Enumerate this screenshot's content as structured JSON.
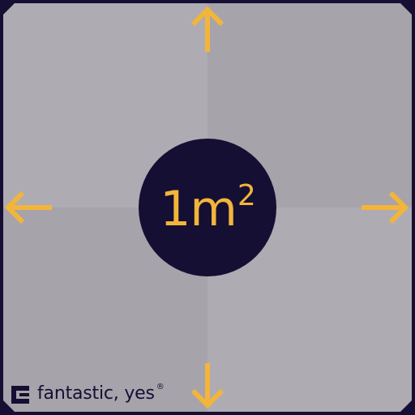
{
  "badge": {
    "main": "1m",
    "superscript": "2"
  },
  "brand": {
    "name": "fantastic, yes",
    "mark": "®",
    "logo_icon": "bracket-logo-icon"
  },
  "arrows": {
    "up_icon": "arrow-up-icon",
    "down_icon": "arrow-down-icon",
    "left_icon": "arrow-left-icon",
    "right_icon": "arrow-right-icon"
  },
  "colors": {
    "accent": "#f2b53b",
    "navy": "#150f33",
    "tile_light": "#aeabb3",
    "tile_dark": "#a6a3ab"
  }
}
